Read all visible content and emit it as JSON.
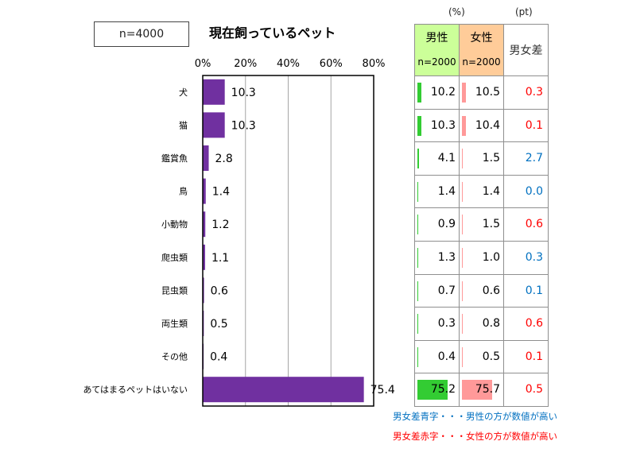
{
  "sample_label": "n=4000",
  "chart_data": {
    "type": "bar",
    "orientation": "horizontal",
    "title": "現在飼っているペット",
    "categories": [
      "犬",
      "猫",
      "鑑賞魚",
      "鳥",
      "小動物",
      "爬虫類",
      "昆虫類",
      "両生類",
      "その他",
      "あてはまるペットはいない"
    ],
    "values": [
      10.3,
      10.3,
      2.8,
      1.4,
      1.2,
      1.1,
      0.6,
      0.5,
      0.4,
      75.4
    ],
    "value_labels": [
      "10.3",
      "10.3",
      "2.8",
      "1.4",
      "1.2",
      "1.1",
      "0.6",
      "0.5",
      "0.4",
      "75.4"
    ],
    "xlim": [
      0,
      80
    ],
    "ticks": [
      "0%",
      "20%",
      "40%",
      "60%",
      "80%"
    ],
    "grid": true,
    "color": "#7030a0"
  },
  "gender_table": {
    "unit_pct": "(%)",
    "unit_pt": "(pt)",
    "male_header": "男性",
    "male_n": "n=2000",
    "female_header": "女性",
    "female_n": "n=2000",
    "diff_header": "男女差",
    "male_color": "#33cc33",
    "female_color": "#ff9999",
    "male_header_bg": "#ccff99",
    "female_header_bg": "#ffcc99",
    "blue_color": "#0070c0",
    "red_color": "#ff0000",
    "rows": [
      {
        "male": 10.2,
        "male_label": "10.2",
        "female": 10.5,
        "female_label": "10.5",
        "diff": "0.3",
        "color": "red"
      },
      {
        "male": 10.3,
        "male_label": "10.3",
        "female": 10.4,
        "female_label": "10.4",
        "diff": "0.1",
        "color": "red"
      },
      {
        "male": 4.1,
        "male_label": "4.1",
        "female": 1.5,
        "female_label": "1.5",
        "diff": "2.7",
        "color": "blue"
      },
      {
        "male": 1.4,
        "male_label": "1.4",
        "female": 1.4,
        "female_label": "1.4",
        "diff": "0.0",
        "color": "blue"
      },
      {
        "male": 0.9,
        "male_label": "0.9",
        "female": 1.5,
        "female_label": "1.5",
        "diff": "0.6",
        "color": "red"
      },
      {
        "male": 1.3,
        "male_label": "1.3",
        "female": 1.0,
        "female_label": "1.0",
        "diff": "0.3",
        "color": "blue"
      },
      {
        "male": 0.7,
        "male_label": "0.7",
        "female": 0.6,
        "female_label": "0.6",
        "diff": "0.1",
        "color": "blue"
      },
      {
        "male": 0.3,
        "male_label": "0.3",
        "female": 0.8,
        "female_label": "0.8",
        "diff": "0.6",
        "color": "red"
      },
      {
        "male": 0.4,
        "male_label": "0.4",
        "female": 0.5,
        "female_label": "0.5",
        "diff": "0.1",
        "color": "red"
      },
      {
        "male": 75.2,
        "male_label": "75.2",
        "female": 75.7,
        "female_label": "75.7",
        "diff": "0.5",
        "color": "red"
      }
    ],
    "note_blue": "男女差青字・・・男性の方が数値が高い",
    "note_red": "男女差赤字・・・女性の方が数値が高い"
  }
}
